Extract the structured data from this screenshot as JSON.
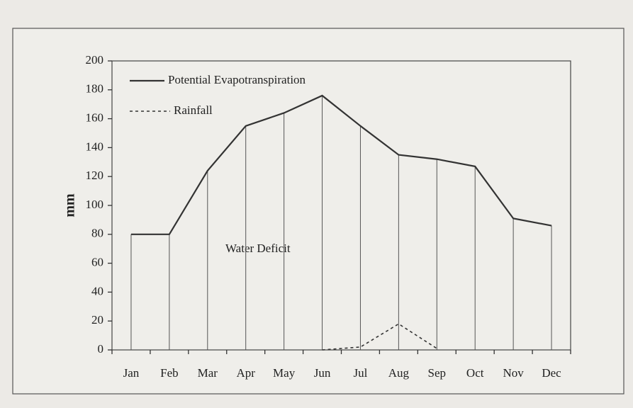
{
  "chart_data": {
    "type": "line",
    "y_label": "mm",
    "annotation": "Water Deficit",
    "categories": [
      "Jan",
      "Feb",
      "Mar",
      "Apr",
      "May",
      "Jun",
      "Jul",
      "Aug",
      "Sep",
      "Oct",
      "Nov",
      "Dec"
    ],
    "series": [
      {
        "name": "Potential Evapotranspiration",
        "color": "#333333",
        "style": "solid",
        "values": [
          80,
          80,
          124,
          155,
          164,
          176,
          155,
          135,
          132,
          127,
          91,
          86
        ]
      },
      {
        "name": "Rainfall",
        "color": "#333333",
        "style": "dotted",
        "values": [
          null,
          null,
          null,
          null,
          null,
          0,
          2,
          18,
          1,
          null,
          null,
          null
        ]
      }
    ],
    "drop_lines": true,
    "ylim": [
      0,
      200
    ],
    "yticks": [
      0,
      20,
      40,
      60,
      80,
      100,
      120,
      140,
      160,
      180,
      200
    ],
    "legend": "top-left"
  }
}
